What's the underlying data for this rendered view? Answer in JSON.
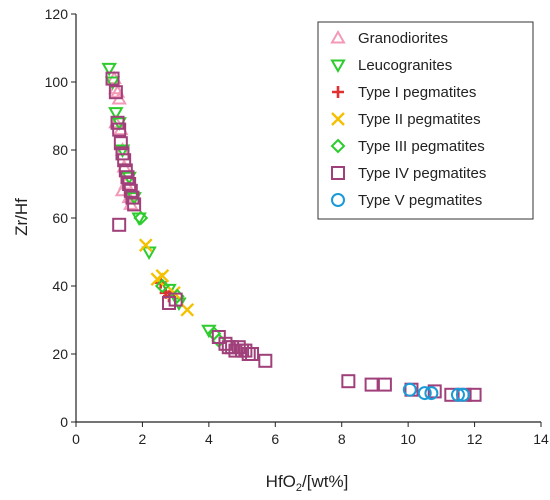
{
  "chart_data": {
    "type": "scatter",
    "title": "",
    "xlabel": {
      "prefix": "HfO",
      "sub": "2",
      "suffix": "/[wt%]"
    },
    "ylabel": "Zr/Hf",
    "xlim": [
      0,
      14
    ],
    "ylim": [
      0,
      120
    ],
    "xticks": [
      0,
      2,
      4,
      6,
      8,
      10,
      12,
      14
    ],
    "yticks": [
      0,
      20,
      40,
      60,
      80,
      100,
      120
    ],
    "grid": false,
    "legend_position": "top-right",
    "series": [
      {
        "name": "Granodiorites",
        "marker": "triangle-up",
        "color": "#f29ab8",
        "points": [
          [
            1.15,
            101
          ],
          [
            1.2,
            98
          ],
          [
            1.25,
            97
          ],
          [
            1.3,
            95
          ],
          [
            1.2,
            88
          ],
          [
            1.35,
            86
          ],
          [
            1.4,
            80
          ],
          [
            1.45,
            75
          ],
          [
            1.5,
            70
          ],
          [
            1.4,
            68
          ],
          [
            1.6,
            66
          ],
          [
            1.65,
            64
          ]
        ]
      },
      {
        "name": "Leucogranites",
        "marker": "triangle-down",
        "color": "#2ccc2c",
        "points": [
          [
            1.0,
            104
          ],
          [
            1.1,
            100
          ],
          [
            1.2,
            91
          ],
          [
            1.3,
            88
          ],
          [
            1.4,
            80
          ],
          [
            1.6,
            72
          ],
          [
            1.75,
            66
          ],
          [
            1.9,
            60
          ],
          [
            2.2,
            50
          ],
          [
            2.8,
            39
          ],
          [
            3.1,
            35
          ],
          [
            4.0,
            27
          ]
        ]
      },
      {
        "name": "Type I pegmatites",
        "marker": "plus",
        "color": "#e03030",
        "points": [
          [
            2.55,
            41
          ],
          [
            2.7,
            38
          ],
          [
            2.8,
            37
          ]
        ]
      },
      {
        "name": "Type II pegmatites",
        "marker": "x",
        "color": "#f5c000",
        "points": [
          [
            2.1,
            52
          ],
          [
            2.45,
            42
          ],
          [
            2.6,
            43
          ],
          [
            2.95,
            38
          ],
          [
            3.35,
            33
          ]
        ]
      },
      {
        "name": "Type III pegmatites",
        "marker": "diamond",
        "color": "#2ccc2c",
        "points": [
          [
            1.95,
            60
          ],
          [
            2.6,
            40
          ],
          [
            3.05,
            37
          ],
          [
            4.15,
            26
          ],
          [
            4.3,
            24
          ]
        ]
      },
      {
        "name": "Type IV pegmatites",
        "marker": "square",
        "color": "#a0407a",
        "points": [
          [
            1.1,
            101
          ],
          [
            1.2,
            97
          ],
          [
            1.25,
            88
          ],
          [
            1.3,
            86
          ],
          [
            1.35,
            82
          ],
          [
            1.4,
            79
          ],
          [
            1.45,
            77
          ],
          [
            1.5,
            74
          ],
          [
            1.55,
            72
          ],
          [
            1.6,
            70
          ],
          [
            1.65,
            68
          ],
          [
            1.7,
            66
          ],
          [
            1.75,
            64
          ],
          [
            1.3,
            58
          ],
          [
            2.8,
            35
          ],
          [
            3.0,
            36
          ],
          [
            4.3,
            25
          ],
          [
            4.5,
            23
          ],
          [
            4.6,
            22
          ],
          [
            4.7,
            22
          ],
          [
            4.8,
            21
          ],
          [
            4.9,
            22
          ],
          [
            5.0,
            21
          ],
          [
            5.1,
            21
          ],
          [
            5.2,
            20
          ],
          [
            5.3,
            20
          ],
          [
            5.7,
            18
          ],
          [
            8.2,
            12
          ],
          [
            8.9,
            11
          ],
          [
            9.3,
            11
          ],
          [
            10.1,
            9.5
          ],
          [
            10.8,
            9
          ],
          [
            11.3,
            8
          ],
          [
            11.7,
            8
          ],
          [
            12.0,
            8
          ]
        ]
      },
      {
        "name": "Type V pegmatites",
        "marker": "circle",
        "color": "#1a9ad6",
        "points": [
          [
            10.05,
            9.5
          ],
          [
            10.5,
            8.5
          ],
          [
            10.7,
            8.5
          ],
          [
            11.5,
            8
          ],
          [
            11.65,
            8
          ]
        ]
      }
    ]
  }
}
